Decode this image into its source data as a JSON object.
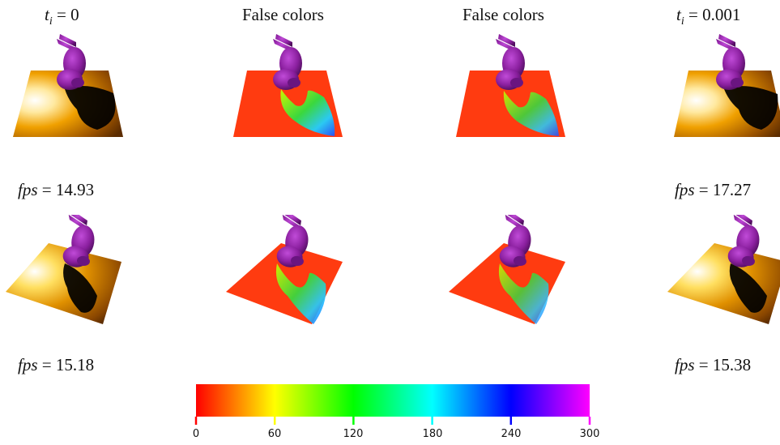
{
  "column_titles": {
    "col1": {
      "var": "t",
      "sub": "i",
      "eq": "=",
      "val": "0"
    },
    "col2": "False colors",
    "col3": "False colors",
    "col4": {
      "var": "t",
      "sub": "i",
      "eq": "=",
      "val": "0.001"
    }
  },
  "fps_labels": {
    "row1_left": {
      "var": "fps",
      "eq": "=",
      "val": "14.93"
    },
    "row1_right": {
      "var": "fps",
      "eq": "=",
      "val": "17.27"
    },
    "row2_left": {
      "var": "fps",
      "eq": "=",
      "val": "15.18"
    },
    "row2_right": {
      "var": "fps",
      "eq": "=",
      "val": "15.38"
    }
  },
  "colorbar": {
    "ticks": [
      "0",
      "60",
      "120",
      "180",
      "240",
      "300"
    ],
    "colors": [
      "#ff0000",
      "#ffff00",
      "#00ff00",
      "#00ffff",
      "#0000ff",
      "#ff00ff"
    ]
  },
  "colors": {
    "bunny": "#8a1f9e",
    "false_color_base": "#ff3b10",
    "shaded_floor_light": "#ffd000",
    "shaded_floor_dark": "#7a3d00"
  }
}
